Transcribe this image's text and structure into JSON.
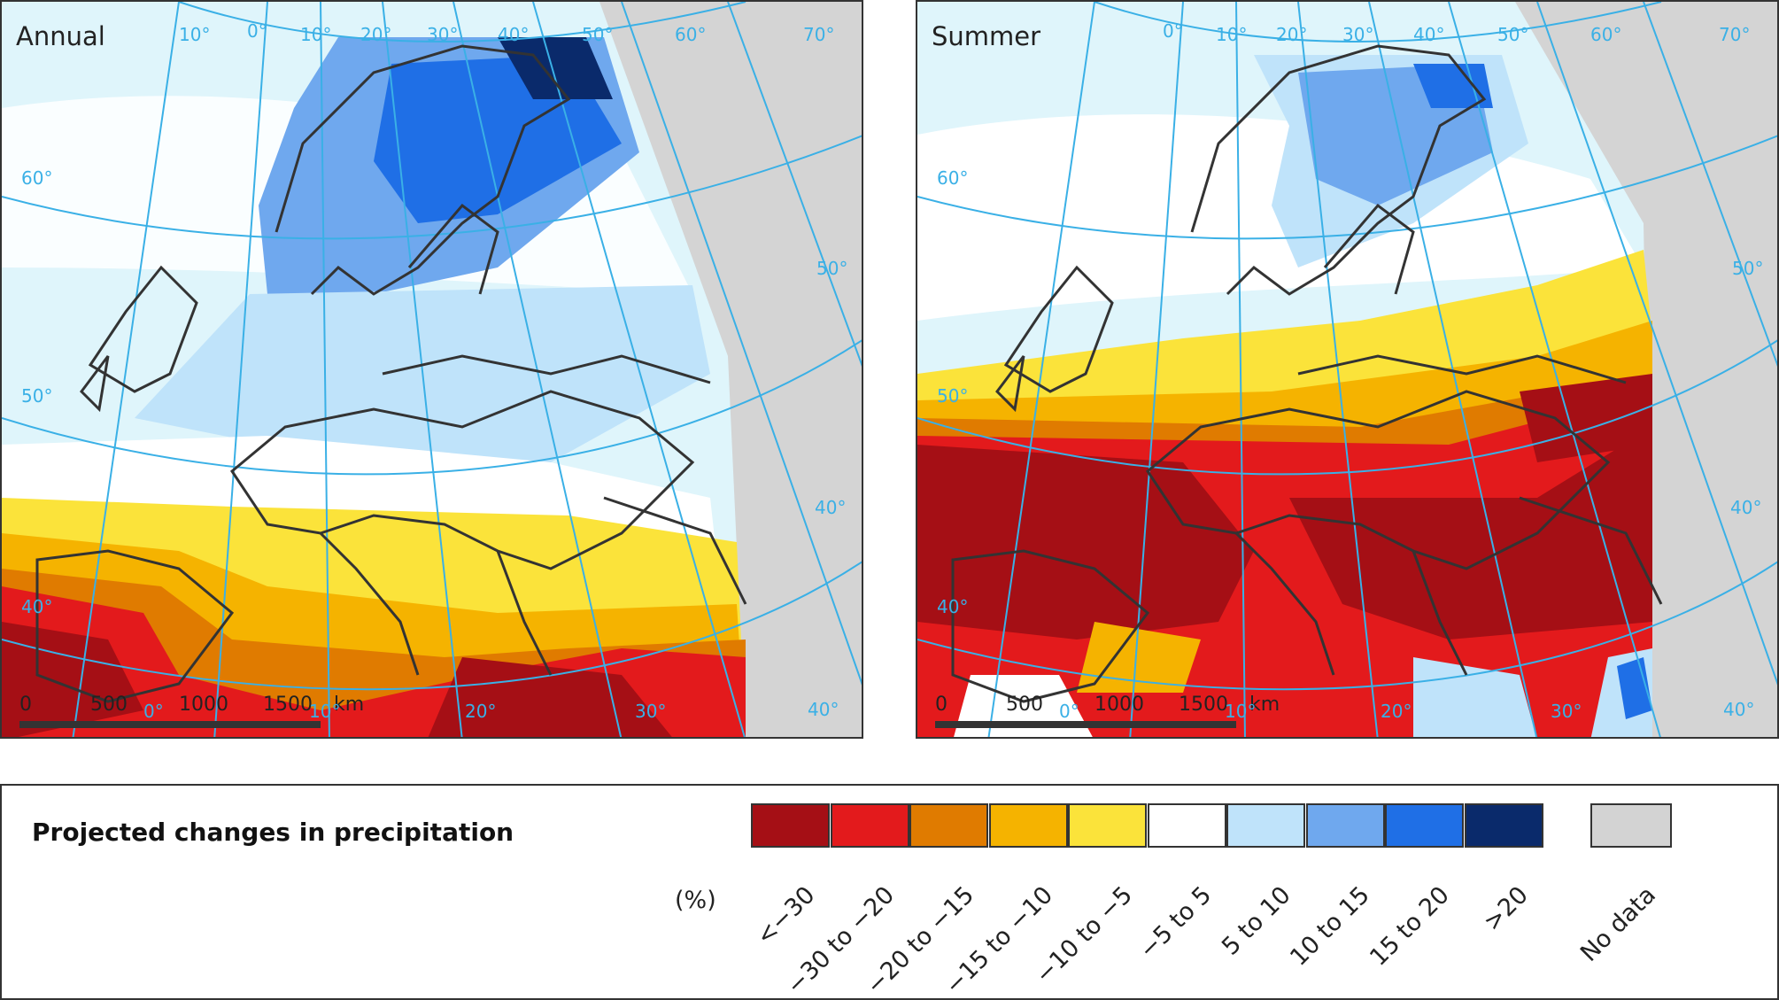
{
  "panels": [
    {
      "id": "annual",
      "title": "Annual"
    },
    {
      "id": "summer",
      "title": "Summer"
    }
  ],
  "graticule_labels": {
    "meridians_top": [
      "10°",
      "0°",
      "10°",
      "20°",
      "30°",
      "40°",
      "50°",
      "60°",
      "70°"
    ],
    "parallels_left": [
      "60°",
      "50°",
      "40°"
    ],
    "parallels_right": [
      "50°",
      "40°",
      "40°"
    ],
    "meridians_bottom": [
      "0°",
      "10°",
      "20°",
      "30°"
    ]
  },
  "scale_bar": {
    "ticks": [
      "0",
      "500",
      "1000",
      "1500"
    ],
    "unit": "km"
  },
  "legend": {
    "title": "Projected changes in precipitation",
    "unit": "(%)",
    "classes": [
      {
        "label": "<−30",
        "color": "#a50f15"
      },
      {
        "label": "−30 to −20",
        "color": "#e31a1c"
      },
      {
        "label": "−20 to −15",
        "color": "#e07b00"
      },
      {
        "label": "−15 to −10",
        "color": "#f5b300"
      },
      {
        "label": "−10 to −5",
        "color": "#fbe33a"
      },
      {
        "label": "−5 to 5",
        "color": "#ffffff"
      },
      {
        "label": "5 to 10",
        "color": "#bfe3fa"
      },
      {
        "label": "10 to 15",
        "color": "#6fa8ee"
      },
      {
        "label": "15 to 20",
        "color": "#1f6fe6"
      },
      {
        "label": ">20",
        "color": "#0a2a6b"
      }
    ],
    "no_data": {
      "label": "No data",
      "color": "#d3d3d3"
    }
  },
  "colors": {
    "graticule": "#3ab0e6",
    "borders": "#333333",
    "sea": "#dff5fb",
    "land_outside": "#d4d4d4"
  }
}
